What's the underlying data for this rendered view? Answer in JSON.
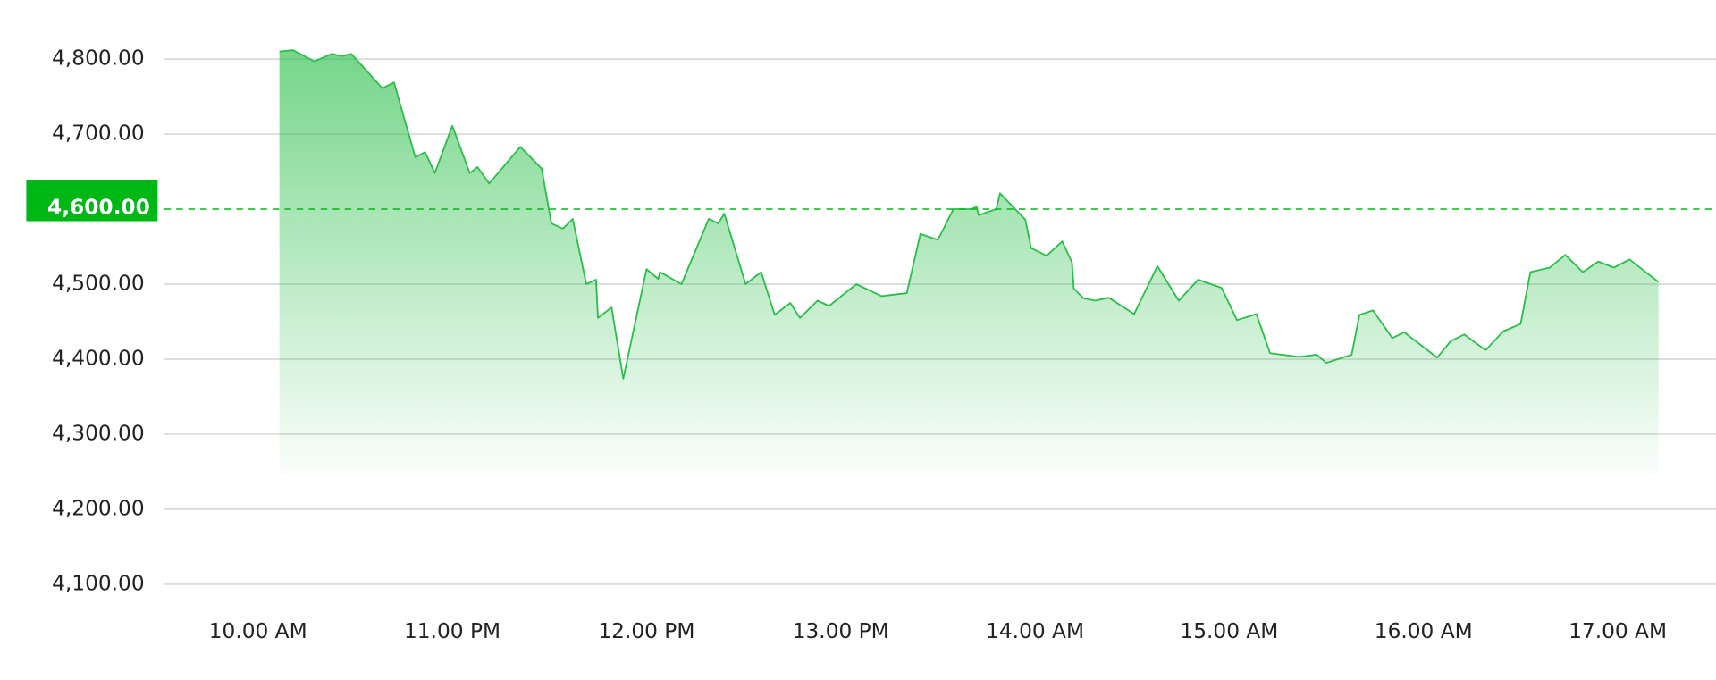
{
  "chart_data": {
    "type": "area",
    "x": [
      10.11,
      10.18,
      10.29,
      10.38,
      10.43,
      10.48,
      10.64,
      10.7,
      10.81,
      10.86,
      10.91,
      11.0,
      11.09,
      11.13,
      11.19,
      11.35,
      11.46,
      11.51,
      11.57,
      11.62,
      11.69,
      11.74,
      11.75,
      11.82,
      11.88,
      12.0,
      12.06,
      12.07,
      12.18,
      12.32,
      12.37,
      12.4,
      12.51,
      12.59,
      12.66,
      12.74,
      12.79,
      12.88,
      12.94,
      13.08,
      13.21,
      13.34,
      13.41,
      13.5,
      13.58,
      13.67,
      13.7,
      13.71,
      13.8,
      13.82,
      13.95,
      13.98,
      14.06,
      14.14,
      14.19,
      14.2,
      14.25,
      14.31,
      14.38,
      14.51,
      14.63,
      14.74,
      14.84,
      14.96,
      15.04,
      15.14,
      15.21,
      15.36,
      15.45,
      15.5,
      15.63,
      15.67,
      15.74,
      15.84,
      15.9,
      16.07,
      16.14,
      16.21,
      16.32,
      16.41,
      16.5,
      16.55,
      16.65,
      16.73,
      16.82,
      16.9,
      16.98,
      17.06,
      17.21
    ],
    "values": [
      4810,
      4812,
      4797,
      4807,
      4804,
      4807,
      4761,
      4769,
      4669,
      4676,
      4648,
      4711,
      4648,
      4656,
      4634,
      4683,
      4654,
      4581,
      4574,
      4587,
      4500,
      4506,
      4455,
      4469,
      4374,
      4520,
      4507,
      4516,
      4500,
      4587,
      4581,
      4594,
      4500,
      4516,
      4459,
      4475,
      4455,
      4478,
      4471,
      4500,
      4484,
      4488,
      4567,
      4559,
      4600,
      4600,
      4603,
      4592,
      4600,
      4621,
      4586,
      4548,
      4538,
      4557,
      4529,
      4494,
      4481,
      4478,
      4482,
      4460,
      4524,
      4478,
      4506,
      4495,
      4452,
      4460,
      4408,
      4403,
      4406,
      4395,
      4406,
      4459,
      4465,
      4428,
      4436,
      4402,
      4424,
      4433,
      4412,
      4437,
      4447,
      4516,
      4522,
      4539,
      4516,
      4530,
      4522,
      4533,
      4503
    ],
    "color": "#2bbf4a",
    "xlim": [
      9.5,
      17.5
    ],
    "xticks": [
      {
        "value": 10,
        "label": "10.00 AM"
      },
      {
        "value": 11,
        "label": "11.00 PM"
      },
      {
        "value": 12,
        "label": "12.00 PM"
      },
      {
        "value": 13,
        "label": "13.00 PM"
      },
      {
        "value": 14,
        "label": "14.00 AM"
      },
      {
        "value": 15,
        "label": "15.00 AM"
      },
      {
        "value": 16,
        "label": "16.00 AM"
      },
      {
        "value": 17,
        "label": "17.00 AM"
      }
    ],
    "ylim": [
      4100,
      4800
    ],
    "yticks": [
      {
        "value": 4100,
        "label": "4,100.00"
      },
      {
        "value": 4200,
        "label": "4,200.00"
      },
      {
        "value": 4300,
        "label": "4,300.00"
      },
      {
        "value": 4400,
        "label": "4,400.00"
      },
      {
        "value": 4500,
        "label": "4,500.00"
      },
      {
        "value": 4700,
        "label": "4,700.00"
      },
      {
        "value": 4800,
        "label": "4,800.00"
      }
    ],
    "reference_line": {
      "value": 4600,
      "label": "4,600.00",
      "color": "#00b815"
    },
    "grid": true
  }
}
